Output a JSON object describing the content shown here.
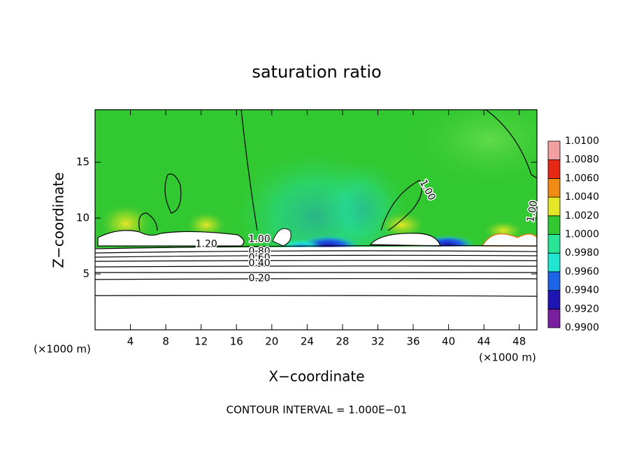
{
  "chart_data": {
    "type": "contour",
    "title": "saturation ratio",
    "x_label": "X−coordinate",
    "y_label": "Z−coordinate",
    "x_unit_labels": [
      "(×1000 m)",
      "(×1000 m)"
    ],
    "xlim": [
      0,
      50
    ],
    "ylim": [
      0,
      19.7
    ],
    "xticks": [
      4,
      8,
      12,
      16,
      20,
      24,
      28,
      32,
      36,
      40,
      44,
      48
    ],
    "yticks": [
      5,
      10,
      15
    ],
    "colorbar": {
      "levels": [
        {
          "value": 0.99,
          "label": "0.9900"
        },
        {
          "value": 0.992,
          "label": "0.9920"
        },
        {
          "value": 0.994,
          "label": "0.9940"
        },
        {
          "value": 0.996,
          "label": "0.9960"
        },
        {
          "value": 0.998,
          "label": "0.9980"
        },
        {
          "value": 1,
          "label": "1.0000"
        },
        {
          "value": 1.002,
          "label": "1.0020"
        },
        {
          "value": 1.004,
          "label": "1.0040"
        },
        {
          "value": 1.006,
          "label": "1.0060"
        },
        {
          "value": 1.008,
          "label": "1.0080"
        },
        {
          "value": 1.01,
          "label": "1.0100"
        }
      ],
      "colors": [
        "#7a1ea0",
        "#1e14b4",
        "#1e64e6",
        "#1ee6d2",
        "#28e696",
        "#32c832",
        "#e6e628",
        "#f08c14",
        "#e62814",
        "#f0a0a0"
      ]
    },
    "contour_labels": [
      {
        "value": 1,
        "label": "1.00"
      },
      {
        "value": 1.2,
        "label": "1.20"
      },
      {
        "value": 0.8,
        "label": "0.80"
      },
      {
        "value": 0.6,
        "label": "0.60"
      },
      {
        "value": 0.4,
        "label": "0.40"
      },
      {
        "value": 0.2,
        "label": "0.20"
      },
      {
        "value": 1,
        "label": "1.00"
      },
      {
        "value": 1,
        "label": "1.00"
      }
    ],
    "footnote": "CONTOUR INTERVAL = 1.000E−01"
  }
}
